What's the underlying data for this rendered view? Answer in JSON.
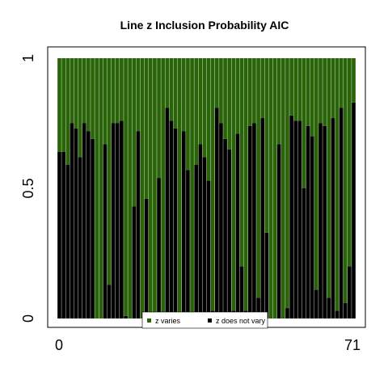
{
  "colors": {
    "varies": "#2a6408",
    "not_vary": "#000000",
    "frame": "#000000",
    "background": "#ffffff"
  },
  "chart_data": {
    "type": "bar",
    "stacked": true,
    "title": "Line z Inclusion Probability AIC",
    "xlabel": "",
    "ylabel": "",
    "x_ticks": [
      "0",
      "71"
    ],
    "y_ticks": [
      "0",
      "0.5",
      "1"
    ],
    "ylim": [
      0,
      1
    ],
    "categories": [
      "0",
      "1",
      "2",
      "3",
      "4",
      "5",
      "6",
      "7",
      "8",
      "9",
      "10",
      "11",
      "12",
      "13",
      "14",
      "15",
      "16",
      "17",
      "18",
      "19",
      "20",
      "21",
      "22",
      "23",
      "24",
      "25",
      "26",
      "27",
      "28",
      "29",
      "30",
      "31",
      "32",
      "33",
      "34",
      "35",
      "36",
      "37",
      "38",
      "39",
      "40",
      "41",
      "42",
      "43",
      "44",
      "45",
      "46",
      "47",
      "48",
      "49",
      "50",
      "51",
      "52",
      "53",
      "54",
      "55",
      "56",
      "57",
      "58",
      "59",
      "60",
      "61",
      "62",
      "63",
      "64",
      "65",
      "66",
      "67",
      "68",
      "69",
      "70",
      "71"
    ],
    "series": [
      {
        "name": "z does not vary",
        "values": [
          0.64,
          0.64,
          0.59,
          0.75,
          0.73,
          0.62,
          0.75,
          0.72,
          0.69,
          0.0,
          0.0,
          0.67,
          0.13,
          0.75,
          0.75,
          0.76,
          0.01,
          0.0,
          0.43,
          0.72,
          0.0,
          0.46,
          0.0,
          0.0,
          0.54,
          0.01,
          0.81,
          0.76,
          0.73,
          0.01,
          0.72,
          0.57,
          0.0,
          0.59,
          0.67,
          0.62,
          0.53,
          0.03,
          0.81,
          0.75,
          0.69,
          0.65,
          0.03,
          0.71,
          0.2,
          0.03,
          0.74,
          0.75,
          0.08,
          0.77,
          0.33,
          0.0,
          0.0,
          0.67,
          0.0,
          0.04,
          0.78,
          0.76,
          0.76,
          0.5,
          0.74,
          0.7,
          0.11,
          0.75,
          0.74,
          0.08,
          0.77,
          0.03,
          0.81,
          0.06,
          0.2,
          0.83
        ]
      },
      {
        "name": "z varies",
        "values": [
          0.36,
          0.36,
          0.41,
          0.25,
          0.27,
          0.38,
          0.25,
          0.28,
          0.31,
          1.0,
          1.0,
          0.33,
          0.87,
          0.25,
          0.25,
          0.24,
          0.99,
          1.0,
          0.57,
          0.28,
          1.0,
          0.54,
          1.0,
          1.0,
          0.46,
          0.99,
          0.19,
          0.24,
          0.27,
          0.99,
          0.28,
          0.43,
          1.0,
          0.41,
          0.33,
          0.38,
          0.47,
          0.97,
          0.19,
          0.25,
          0.31,
          0.35,
          0.97,
          0.29,
          0.8,
          0.97,
          0.26,
          0.25,
          0.92,
          0.23,
          0.67,
          1.0,
          1.0,
          0.33,
          1.0,
          0.96,
          0.22,
          0.24,
          0.24,
          0.5,
          0.26,
          0.3,
          0.89,
          0.25,
          0.26,
          0.92,
          0.23,
          0.97,
          0.19,
          0.94,
          0.8,
          0.17
        ]
      }
    ],
    "legend": {
      "position": "bottom-center",
      "items": [
        {
          "label": "z varies",
          "color": "#2a6408"
        },
        {
          "label": "z does not vary",
          "color": "#000000"
        }
      ]
    },
    "grid": false
  }
}
